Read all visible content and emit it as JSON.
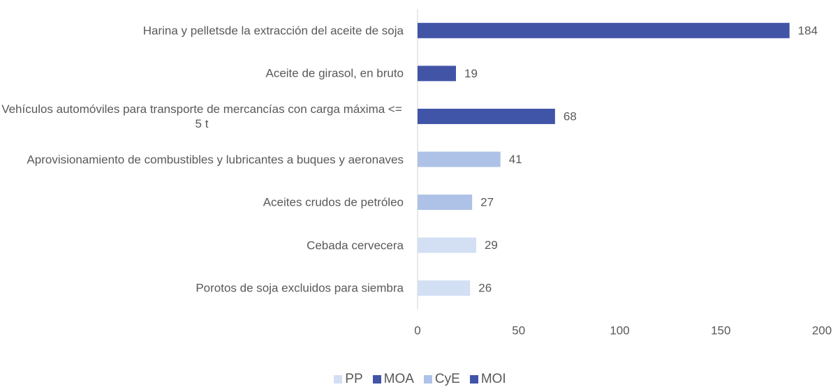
{
  "chart_data": {
    "type": "bar",
    "orientation": "horizontal",
    "categories": [
      "Harina y pelletsde la extracción del aceite de soja",
      "Aceite de girasol, en bruto",
      "Vehículos automóviles para transporte de mercancías con carga máxima <= 5 t",
      "Aprovisionamiento de combustibles y lubricantes a buques y aeronaves",
      "Aceites crudos de petróleo",
      "Cebada cervecera",
      "Porotos de soja excluidos para siembra"
    ],
    "series": [
      {
        "name": "PP",
        "color": "#d3dff3",
        "values": [
          null,
          null,
          null,
          null,
          null,
          29,
          26
        ]
      },
      {
        "name": "MOA",
        "color": "#4154a6",
        "values": [
          184,
          19,
          null,
          null,
          null,
          null,
          null
        ]
      },
      {
        "name": "CyE",
        "color": "#aec2e7",
        "values": [
          null,
          null,
          null,
          41,
          27,
          null,
          null
        ]
      },
      {
        "name": "MOI",
        "color": "#4054a8",
        "values": [
          null,
          null,
          68,
          null,
          null,
          null,
          null
        ]
      }
    ],
    "xlim": [
      0,
      200
    ],
    "xticks": [
      0,
      50,
      100,
      150,
      200
    ],
    "grid": false,
    "legend": "bottom"
  }
}
